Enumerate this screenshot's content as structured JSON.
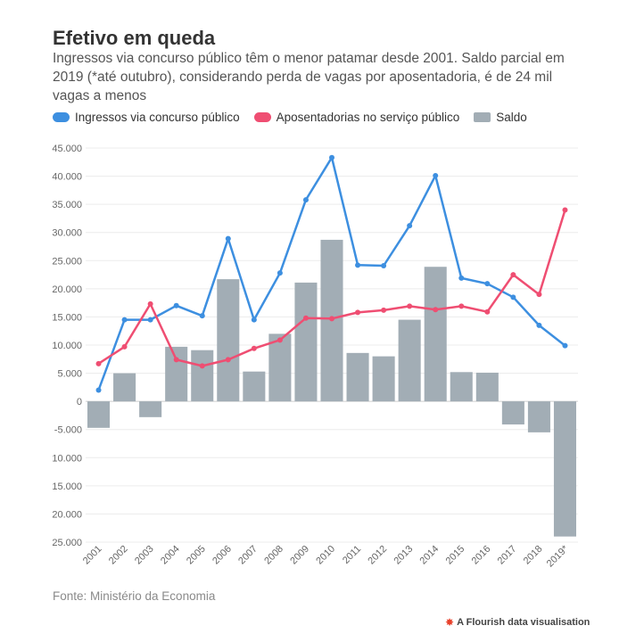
{
  "header": {
    "title": "Efetivo em queda",
    "subtitle": "Ingressos via concurso público têm o menor patamar desde 2001. Saldo parcial em 2019 (*até outubro), considerando perda de vagas por aposentadoria, é de 24 mil vagas a menos"
  },
  "legend": [
    {
      "label": "Ingressos via concurso público",
      "color": "#3d8fe0"
    },
    {
      "label": "Aposentadorias no serviço público",
      "color": "#ef4e72"
    },
    {
      "label": "Saldo",
      "color": "#a2adb5"
    }
  ],
  "footer": {
    "source": "Fonte: Ministério da Economia",
    "credit": "A Flourish data visualisation",
    "credit_icon": "flourish-logo-icon"
  },
  "chart_data": {
    "type": "bar",
    "categories": [
      "2001",
      "2002",
      "2003",
      "2004",
      "2005",
      "2006",
      "2007",
      "2008",
      "2009",
      "2010",
      "2011",
      "2012",
      "2013",
      "2014",
      "2015",
      "2016",
      "2017",
      "2018",
      "2019*"
    ],
    "ylim": [
      -25000,
      45000
    ],
    "yticks": [
      {
        "value": 45000,
        "label": "45.000"
      },
      {
        "value": 40000,
        "label": "40.000"
      },
      {
        "value": 35000,
        "label": "35.000"
      },
      {
        "value": 30000,
        "label": "30.000"
      },
      {
        "value": 25000,
        "label": "25.000"
      },
      {
        "value": 20000,
        "label": "20.000"
      },
      {
        "value": 15000,
        "label": "15.000"
      },
      {
        "value": 10000,
        "label": "10.000"
      },
      {
        "value": 5000,
        "label": "5.000"
      },
      {
        "value": 0,
        "label": "0"
      },
      {
        "value": -5000,
        "label": "-5.000"
      },
      {
        "value": -10000,
        "label": "10.000"
      },
      {
        "value": -15000,
        "label": "15.000"
      },
      {
        "value": -20000,
        "label": "20.000"
      },
      {
        "value": -25000,
        "label": "25.000"
      }
    ],
    "grid": true,
    "legend_position": "top-left",
    "series": [
      {
        "name": "Ingressos via concurso público",
        "kind": "line",
        "color": "#3d8fe0",
        "values": [
          2000,
          14500,
          14500,
          17000,
          15200,
          28900,
          14500,
          22800,
          35800,
          43300,
          24200,
          24100,
          31200,
          40100,
          21900,
          20900,
          18500,
          13500,
          9900
        ]
      },
      {
        "name": "Aposentadorias no serviço público",
        "kind": "line",
        "color": "#ef4e72",
        "values": [
          6700,
          9700,
          17300,
          7400,
          6300,
          7400,
          9400,
          10900,
          14800,
          14700,
          15800,
          16200,
          16900,
          16300,
          16900,
          15900,
          22500,
          19000,
          34000
        ]
      },
      {
        "name": "Saldo",
        "kind": "bar",
        "color": "#a2adb5",
        "values": [
          -4700,
          5000,
          -2800,
          9700,
          9100,
          21700,
          5300,
          12000,
          21100,
          28700,
          8600,
          8000,
          14500,
          23900,
          5200,
          5100,
          -4100,
          -5500,
          -24000
        ]
      }
    ]
  }
}
